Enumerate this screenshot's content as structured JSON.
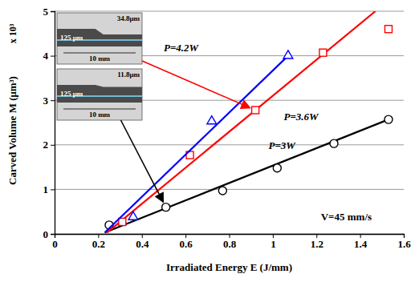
{
  "chart_data": {
    "type": "scatter",
    "x_label": "Irradiated Energy E (J/mm)",
    "y_label": "Carved Volume M (μm³)",
    "y_multiplier": "x 10³",
    "xlim": [
      0,
      1.6
    ],
    "xticks": [
      0,
      0.2,
      0.4,
      0.6,
      0.8,
      1,
      1.2,
      1.4,
      1.6
    ],
    "ylim": [
      0,
      5
    ],
    "yticks": [
      0,
      1,
      2,
      3,
      4,
      5
    ],
    "grid": true,
    "series": [
      {
        "name": "P=3W",
        "color": "#000000",
        "marker": "circle",
        "x": [
          0.25,
          0.51,
          0.77,
          1.02,
          1.28,
          1.53
        ],
        "values": [
          0.2,
          0.6,
          0.97,
          1.48,
          2.03,
          2.57
        ],
        "fit_x": [
          0.23,
          1.53
        ],
        "fit_values": [
          0.03,
          2.57
        ],
        "label_x": 0.98,
        "label_y": 1.9
      },
      {
        "name": "P=3.6W",
        "color": "#ff0000",
        "marker": "square",
        "x": [
          0.31,
          0.62,
          0.92,
          1.23,
          1.53
        ],
        "values": [
          0.27,
          1.77,
          2.78,
          4.07,
          4.6
        ],
        "fit_x": [
          0.24,
          1.47
        ],
        "fit_values": [
          0.03,
          5.0
        ],
        "label_x": 1.05,
        "label_y": 2.55
      },
      {
        "name": "P=4.2W",
        "color": "#0000ff",
        "marker": "triangle",
        "x": [
          0.36,
          0.72,
          1.07
        ],
        "values": [
          0.38,
          2.53,
          4.0
        ],
        "fit_x": [
          0.23,
          1.07
        ],
        "fit_values": [
          0.03,
          4.0
        ],
        "label_x": 0.5,
        "label_y": 4.1
      }
    ],
    "annotations": [
      {
        "text": "V=45 mm/s",
        "x": 1.22,
        "y": 0.3
      }
    ],
    "insets": [
      {
        "labels": [
          "34.8μm",
          "125 μm",
          "10 mm"
        ]
      },
      {
        "labels": [
          "11.8μm",
          "125 μm",
          "10 mm"
        ]
      }
    ]
  }
}
